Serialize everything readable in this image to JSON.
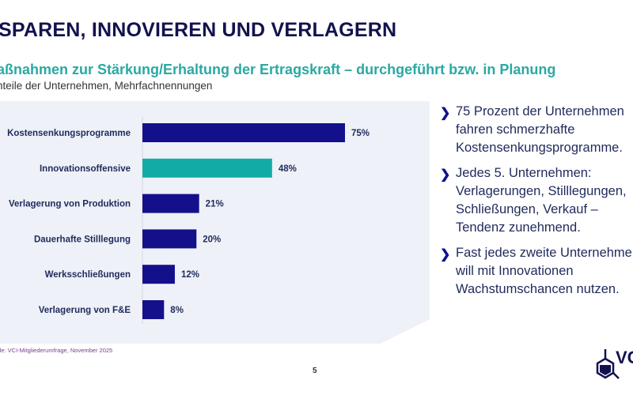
{
  "header": {
    "title": "SPAREN, INNOVIEREN UND VERLAGERN",
    "subtitle": "Maßnahmen zur Stärkung/Erhaltung der Ertragskraft – durchgeführt bzw. in Planung",
    "subtitle_visible": "aßnahmen zur Stärkung/Erhaltung der Ertragskraft – durchgeführt bzw. in Planung",
    "note": "nteile der Unternehmen, Mehrfachnennungen"
  },
  "chart_data": {
    "type": "bar",
    "orientation": "horizontal",
    "categories": [
      "Kostensenkungsprogramme",
      "Innovationsoffensive",
      "Verlagerung von Produktion",
      "Dauerhafte Stilllegung",
      "Werksschließungen",
      "Verlagerung von F&E"
    ],
    "values": [
      75,
      48,
      21,
      20,
      12,
      8
    ],
    "data_labels": [
      "75%",
      "48%",
      "21%",
      "20%",
      "12%",
      "8%"
    ],
    "unit": "%",
    "xlim": [
      0,
      100
    ],
    "grid": false,
    "colors": {
      "default": "#14108c",
      "highlight": "#12aca6"
    },
    "highlight_index": 1
  },
  "bullets": [
    {
      "lines": [
        "75 Prozent der Unternehmen",
        "fahren schmerzhafte",
        "Kostensenkungsprogramme."
      ]
    },
    {
      "lines": [
        "Jedes 5. Unternehmen:",
        "Verlagerungen, Stilllegungen,",
        "Schließungen, Verkauf –",
        "Tendenz zunehmend."
      ]
    },
    {
      "lines": [
        "Fast jedes zweite Unternehmen",
        "will mit Innovationen",
        "Wachstumschancen nutzen."
      ]
    }
  ],
  "footer": {
    "source": "lle: VCI-Mitgliederumfrage, November 2025",
    "page": "5",
    "logo_text": "VCI"
  }
}
